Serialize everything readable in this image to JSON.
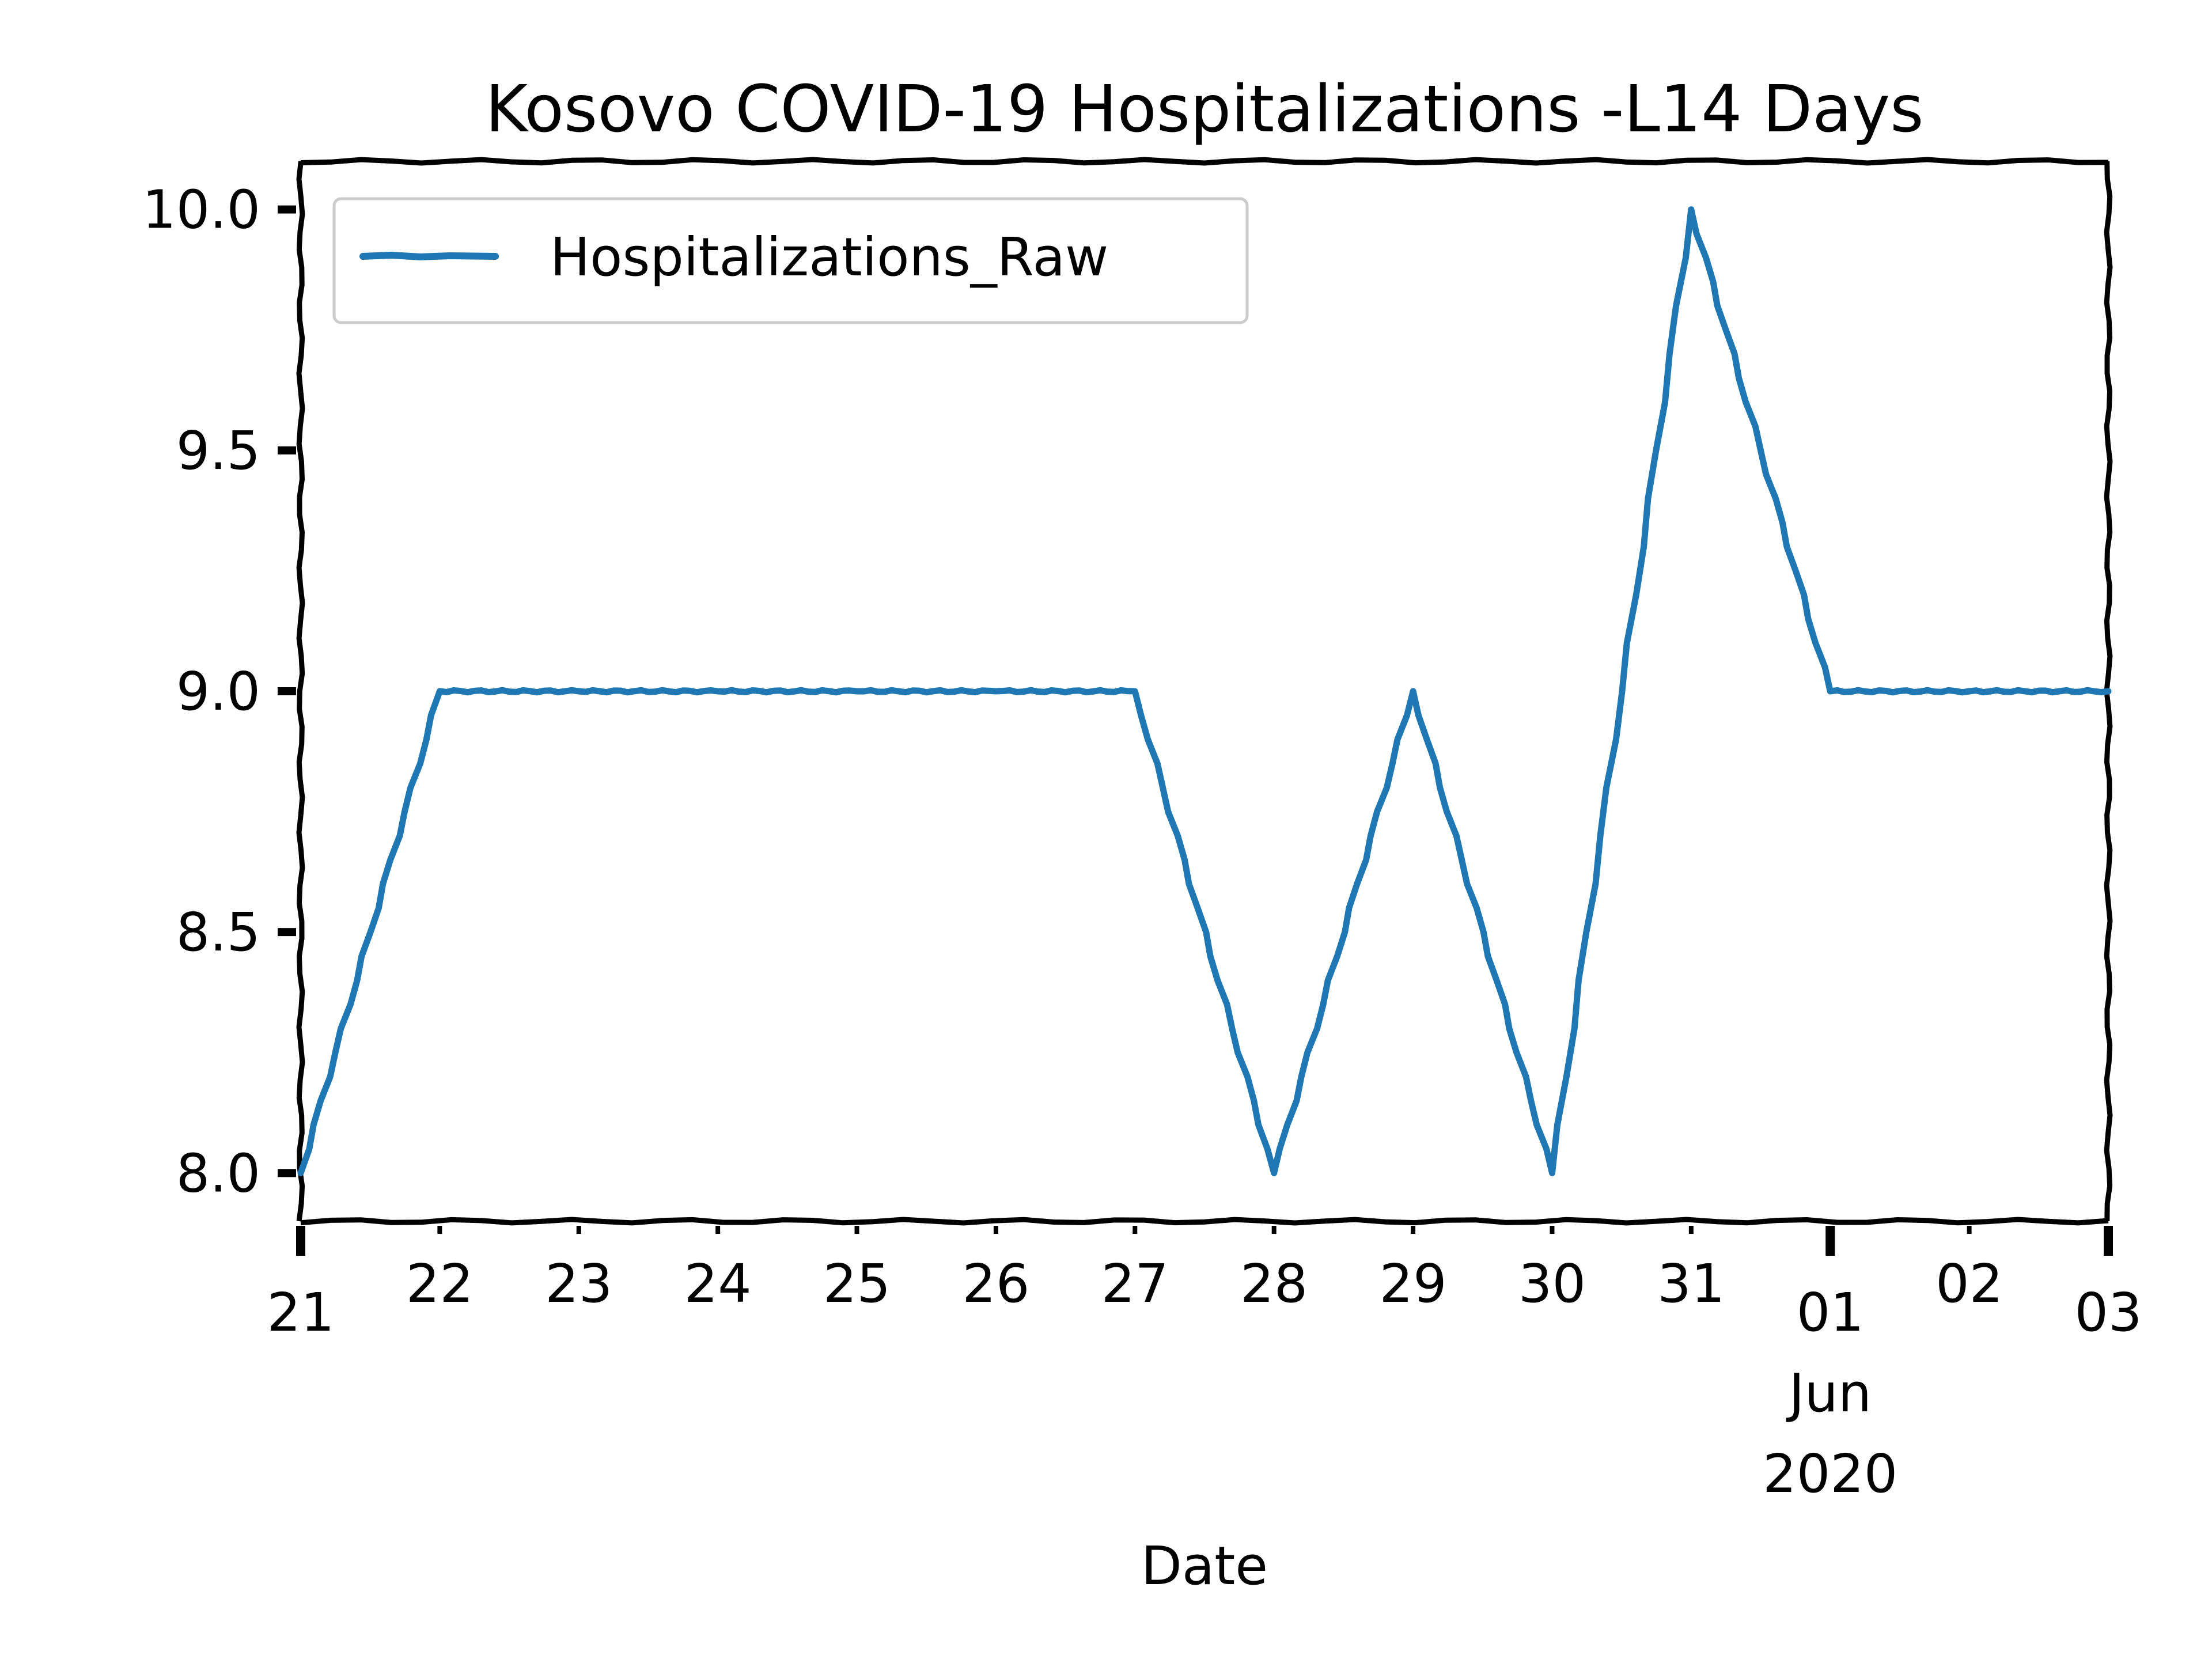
{
  "chart_data": {
    "type": "line",
    "title": "Kosovo COVID-19 Hospitalizations -L14 Days",
    "xlabel": "Date",
    "ylabel": "",
    "x": [
      "2020-05-21",
      "2020-05-22",
      "2020-05-23",
      "2020-05-24",
      "2020-05-25",
      "2020-05-26",
      "2020-05-27",
      "2020-05-28",
      "2020-05-29",
      "2020-05-30",
      "2020-05-31",
      "2020-06-01",
      "2020-06-02",
      "2020-06-03"
    ],
    "series": [
      {
        "name": "Hospitalizations_Raw",
        "color": "#1f77b4",
        "values": [
          8,
          9,
          9,
          9,
          9,
          9,
          9,
          8,
          9,
          8,
          10,
          9,
          9,
          9
        ]
      }
    ],
    "x_tick_labels": [
      "21",
      "22",
      "23",
      "24",
      "25",
      "26",
      "27",
      "28",
      "29",
      "30",
      "31",
      "01",
      "02",
      "03"
    ],
    "x_major_ticks": [
      "21",
      "01",
      "03"
    ],
    "x_secondary_labels": [
      "Jun",
      "2020"
    ],
    "y_ticks": [
      "8.0",
      "8.5",
      "9.0",
      "9.5",
      "10.0"
    ],
    "y_tick_values": [
      8.0,
      8.5,
      9.0,
      9.5,
      10.0
    ],
    "ylim": [
      7.9,
      10.1
    ],
    "xlim": [
      "2020-05-21",
      "2020-06-03"
    ],
    "grid": false,
    "legend_position": "upper-left",
    "style": "xkcd"
  }
}
